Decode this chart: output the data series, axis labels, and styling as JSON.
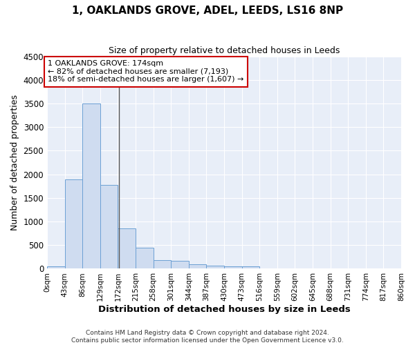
{
  "title": "1, OAKLANDS GROVE, ADEL, LEEDS, LS16 8NP",
  "subtitle": "Size of property relative to detached houses in Leeds",
  "xlabel": "Distribution of detached houses by size in Leeds",
  "ylabel": "Number of detached properties",
  "bin_edges": [
    0,
    43,
    86,
    129,
    172,
    215,
    258,
    301,
    344,
    387,
    430,
    473,
    516,
    559,
    602,
    645,
    688,
    731,
    774,
    817,
    860
  ],
  "bar_heights": [
    50,
    1900,
    3500,
    1775,
    850,
    450,
    175,
    165,
    100,
    65,
    50,
    50,
    0,
    0,
    0,
    0,
    0,
    0,
    0,
    0
  ],
  "property_size": 174,
  "bar_color": "#cfdcf0",
  "bar_edge_color": "#6ca0d4",
  "vline_color": "#555555",
  "annotation_box_color": "#ffffff",
  "annotation_box_edge_color": "#cc0000",
  "annotation_text_line1": "1 OAKLANDS GROVE: 174sqm",
  "annotation_text_line2": "← 82% of detached houses are smaller (7,193)",
  "annotation_text_line3": "18% of semi-detached houses are larger (1,607) →",
  "ylim": [
    0,
    4500
  ],
  "yticks": [
    0,
    500,
    1000,
    1500,
    2000,
    2500,
    3000,
    3500,
    4000,
    4500
  ],
  "background_color": "#e8eef8",
  "grid_color": "#ffffff",
  "footnote1": "Contains HM Land Registry data © Crown copyright and database right 2024.",
  "footnote2": "Contains public sector information licensed under the Open Government Licence v3.0."
}
